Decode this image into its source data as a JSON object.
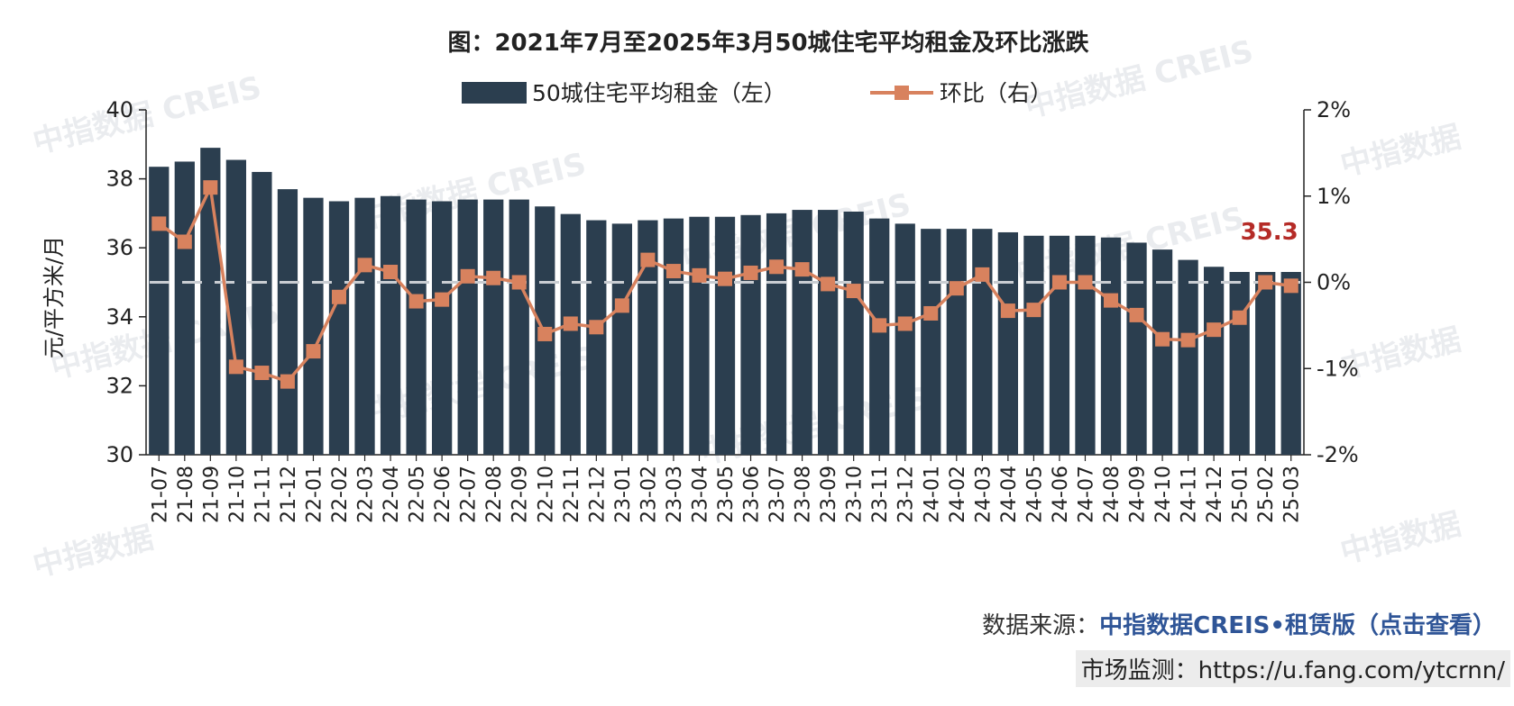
{
  "chart_data": {
    "type": "bar",
    "title": "图：2021年7月至2025年3月50城住宅平均租金及环比涨跌",
    "ylabel": "元/平方米/月",
    "ylim": [
      30,
      40
    ],
    "y2lim": [
      -2,
      2
    ],
    "yticks": [
      "30",
      "32",
      "34",
      "36",
      "38",
      "40"
    ],
    "y2ticks": [
      "-2%",
      "-1%",
      "0%",
      "1%",
      "2%"
    ],
    "legend_position": "top-center",
    "categories": [
      "21-07",
      "21-08",
      "21-09",
      "21-10",
      "21-11",
      "21-12",
      "22-01",
      "22-02",
      "22-03",
      "22-04",
      "22-05",
      "22-06",
      "22-07",
      "22-08",
      "22-09",
      "22-10",
      "22-11",
      "22-12",
      "23-01",
      "23-02",
      "23-03",
      "23-04",
      "23-05",
      "23-06",
      "23-07",
      "23-08",
      "23-09",
      "23-10",
      "23-11",
      "23-12",
      "24-01",
      "24-02",
      "24-03",
      "24-04",
      "24-05",
      "24-06",
      "24-07",
      "24-08",
      "24-09",
      "24-10",
      "24-11",
      "24-12",
      "25-01",
      "25-02",
      "25-03"
    ],
    "series": [
      {
        "name": "50城住宅平均租金（左）",
        "type": "bar",
        "axis": "left",
        "color": "#2b3e4f",
        "values": [
          38.35,
          38.5,
          38.9,
          38.55,
          38.2,
          37.7,
          37.45,
          37.35,
          37.45,
          37.5,
          37.4,
          37.35,
          37.4,
          37.4,
          37.4,
          37.2,
          36.98,
          36.8,
          36.7,
          36.8,
          36.85,
          36.9,
          36.9,
          36.95,
          37.0,
          37.1,
          37.1,
          37.05,
          36.85,
          36.7,
          36.55,
          36.55,
          36.55,
          36.45,
          36.35,
          36.35,
          36.35,
          36.3,
          36.15,
          35.95,
          35.65,
          35.45,
          35.3,
          35.3,
          35.3
        ]
      },
      {
        "name": "环比（右）",
        "type": "line",
        "axis": "right",
        "color": "#d8825e",
        "values": [
          0.68,
          0.47,
          1.1,
          -0.98,
          -1.05,
          -1.15,
          -0.8,
          -0.17,
          0.2,
          0.12,
          -0.22,
          -0.2,
          0.07,
          0.05,
          0.0,
          -0.6,
          -0.48,
          -0.52,
          -0.27,
          0.26,
          0.13,
          0.08,
          0.04,
          0.11,
          0.18,
          0.15,
          -0.02,
          -0.1,
          -0.5,
          -0.48,
          -0.36,
          -0.07,
          0.09,
          -0.33,
          -0.32,
          0.0,
          0.0,
          -0.21,
          -0.38,
          -0.66,
          -0.67,
          -0.55,
          -0.41,
          0.0,
          -0.04
        ]
      }
    ],
    "reference_line": {
      "axis": "right",
      "value": 0
    },
    "annotation": {
      "text": "35.3",
      "category": "25-03"
    }
  },
  "watermark": {
    "text_cn": "中指数据",
    "text_en": "CREIS"
  },
  "source": {
    "label": "数据来源：",
    "link_text": "中指数据CREIS•租赁版（点击查看）"
  },
  "monitor": {
    "label": "市场监测：",
    "url": "https://u.fang.com/ytcrnn/"
  }
}
